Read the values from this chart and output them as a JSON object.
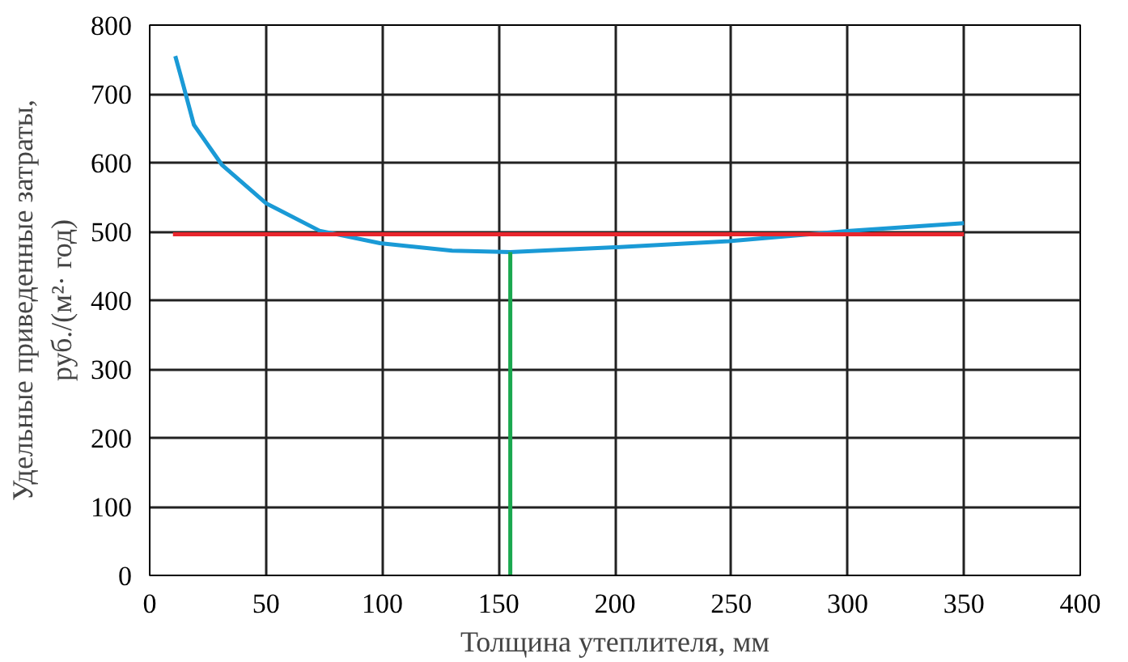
{
  "chart_data": {
    "type": "line",
    "xlabel": "Толщина утеплителя, мм",
    "ylabel": "Удельные приведенные затраты,\nруб./(м²· год)",
    "xlim": [
      0,
      400
    ],
    "ylim": [
      0,
      800
    ],
    "xticks": [
      0,
      50,
      100,
      150,
      200,
      250,
      300,
      350,
      400
    ],
    "yticks": [
      0,
      100,
      200,
      300,
      400,
      500,
      600,
      700,
      800
    ],
    "grid": true,
    "line_style": "solid",
    "series": [
      {
        "color": "#1a9ad6",
        "x": [
          11,
          14.5,
          19,
          31,
          50,
          73,
          99,
          130,
          155,
          200,
          249,
          301,
          350
        ],
        "values": [
          755,
          712,
          655,
          597,
          541,
          501,
          483,
          472,
          470,
          477,
          486,
          501,
          512
        ]
      },
      {
        "color": "#e8262d",
        "x": [
          10,
          350
        ],
        "values": [
          496,
          496
        ]
      },
      {
        "color": "#1aa84f",
        "x": [
          155,
          155
        ],
        "values": [
          0,
          470
        ]
      }
    ]
  }
}
